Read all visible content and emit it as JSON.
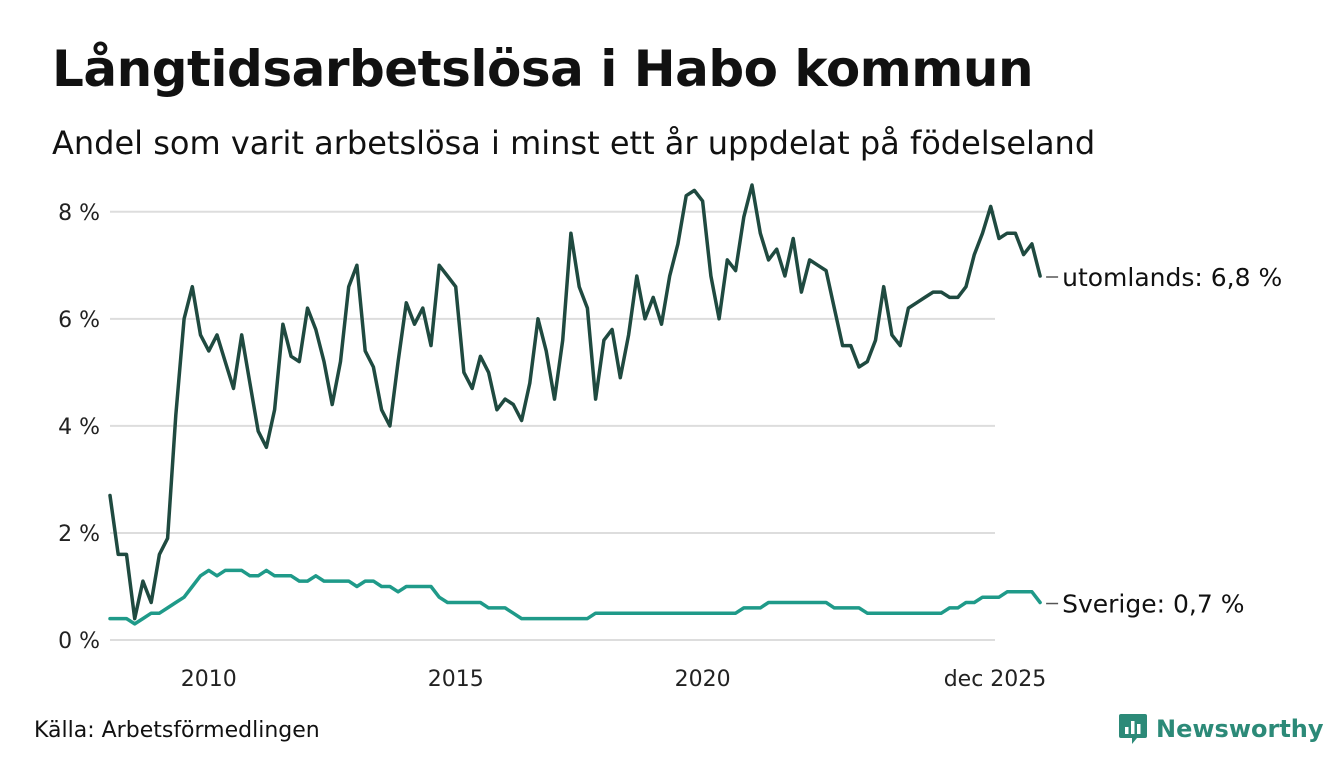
{
  "header": {
    "title": "Långtidsarbetslösa i Habo kommun",
    "subtitle": "Andel som varit arbetslösa i minst ett år uppdelat på födelseland"
  },
  "footer": {
    "source": "Källa: Arbetsförmedlingen",
    "brand": "Newsworthy",
    "brand_icon": "newsworthy-logo-icon"
  },
  "colors": {
    "utomlands": "#1f4a40",
    "sverige": "#1f9a89",
    "grid": "#dddddd",
    "brand": "#2c8a78"
  },
  "chart_data": {
    "type": "line",
    "title": "Långtidsarbetslösa i Habo kommun",
    "subtitle": "Andel som varit arbetslösa i minst ett år uppdelat på födelseland",
    "xlabel": "",
    "ylabel": "",
    "x_start": 2008.0,
    "x_step_months": 2,
    "xlim": [
      2008.0,
      2025.92
    ],
    "ylim": [
      0,
      8.5
    ],
    "grid": true,
    "legend": "end-labels-right",
    "y_ticks": [
      {
        "value": 0,
        "label": "0 %"
      },
      {
        "value": 2,
        "label": "2 %"
      },
      {
        "value": 4,
        "label": "4 %"
      },
      {
        "value": 6,
        "label": "6 %"
      },
      {
        "value": 8,
        "label": "8 %"
      }
    ],
    "x_ticks": [
      {
        "value": 2010,
        "label": "2010"
      },
      {
        "value": 2015,
        "label": "2015"
      },
      {
        "value": 2020,
        "label": "2020"
      },
      {
        "value": 2025.92,
        "label": "dec 2025"
      }
    ],
    "series": [
      {
        "name": "utomlands",
        "end_label": "utomlands: 6,8 %",
        "values": [
          2.7,
          1.6,
          1.6,
          0.4,
          1.1,
          0.7,
          1.6,
          1.9,
          4.2,
          6.0,
          6.6,
          5.7,
          5.4,
          5.7,
          5.2,
          4.7,
          5.7,
          4.8,
          3.9,
          3.6,
          4.3,
          5.9,
          5.3,
          5.2,
          6.2,
          5.8,
          5.2,
          4.4,
          5.2,
          6.6,
          7.0,
          5.4,
          5.1,
          4.3,
          4.0,
          5.2,
          6.3,
          5.9,
          6.2,
          5.5,
          7.0,
          6.8,
          6.6,
          5.0,
          4.7,
          5.3,
          5.0,
          4.3,
          4.5,
          4.4,
          4.1,
          4.8,
          6.0,
          5.4,
          4.5,
          5.6,
          7.6,
          6.6,
          6.2,
          4.5,
          5.6,
          5.8,
          4.9,
          5.7,
          6.8,
          6.0,
          6.4,
          5.9,
          6.8,
          7.4,
          8.3,
          8.4,
          8.2,
          6.8,
          6.0,
          7.1,
          6.9,
          7.9,
          8.5,
          7.6,
          7.1,
          7.3,
          6.8,
          7.5,
          6.5,
          7.1,
          7.0,
          6.9,
          6.2,
          5.5,
          5.5,
          5.1,
          5.2,
          5.6,
          6.6,
          5.7,
          5.5,
          6.2,
          6.3,
          6.4,
          6.5,
          6.5,
          6.4,
          6.4,
          6.6,
          7.2,
          7.6,
          8.1,
          7.5,
          7.6,
          7.6,
          7.2,
          7.4,
          6.8
        ]
      },
      {
        "name": "Sverige",
        "end_label": "Sverige: 0,7 %",
        "values": [
          0.4,
          0.4,
          0.4,
          0.3,
          0.4,
          0.5,
          0.5,
          0.6,
          0.7,
          0.8,
          1.0,
          1.2,
          1.3,
          1.2,
          1.3,
          1.3,
          1.3,
          1.2,
          1.2,
          1.3,
          1.2,
          1.2,
          1.2,
          1.1,
          1.1,
          1.2,
          1.1,
          1.1,
          1.1,
          1.1,
          1.0,
          1.1,
          1.1,
          1.0,
          1.0,
          0.9,
          1.0,
          1.0,
          1.0,
          1.0,
          0.8,
          0.7,
          0.7,
          0.7,
          0.7,
          0.7,
          0.6,
          0.6,
          0.6,
          0.5,
          0.4,
          0.4,
          0.4,
          0.4,
          0.4,
          0.4,
          0.4,
          0.4,
          0.4,
          0.5,
          0.5,
          0.5,
          0.5,
          0.5,
          0.5,
          0.5,
          0.5,
          0.5,
          0.5,
          0.5,
          0.5,
          0.5,
          0.5,
          0.5,
          0.5,
          0.5,
          0.5,
          0.6,
          0.6,
          0.6,
          0.7,
          0.7,
          0.7,
          0.7,
          0.7,
          0.7,
          0.7,
          0.7,
          0.6,
          0.6,
          0.6,
          0.6,
          0.5,
          0.5,
          0.5,
          0.5,
          0.5,
          0.5,
          0.5,
          0.5,
          0.5,
          0.5,
          0.6,
          0.6,
          0.7,
          0.7,
          0.8,
          0.8,
          0.8,
          0.9,
          0.9,
          0.9,
          0.9,
          0.7
        ]
      }
    ]
  }
}
